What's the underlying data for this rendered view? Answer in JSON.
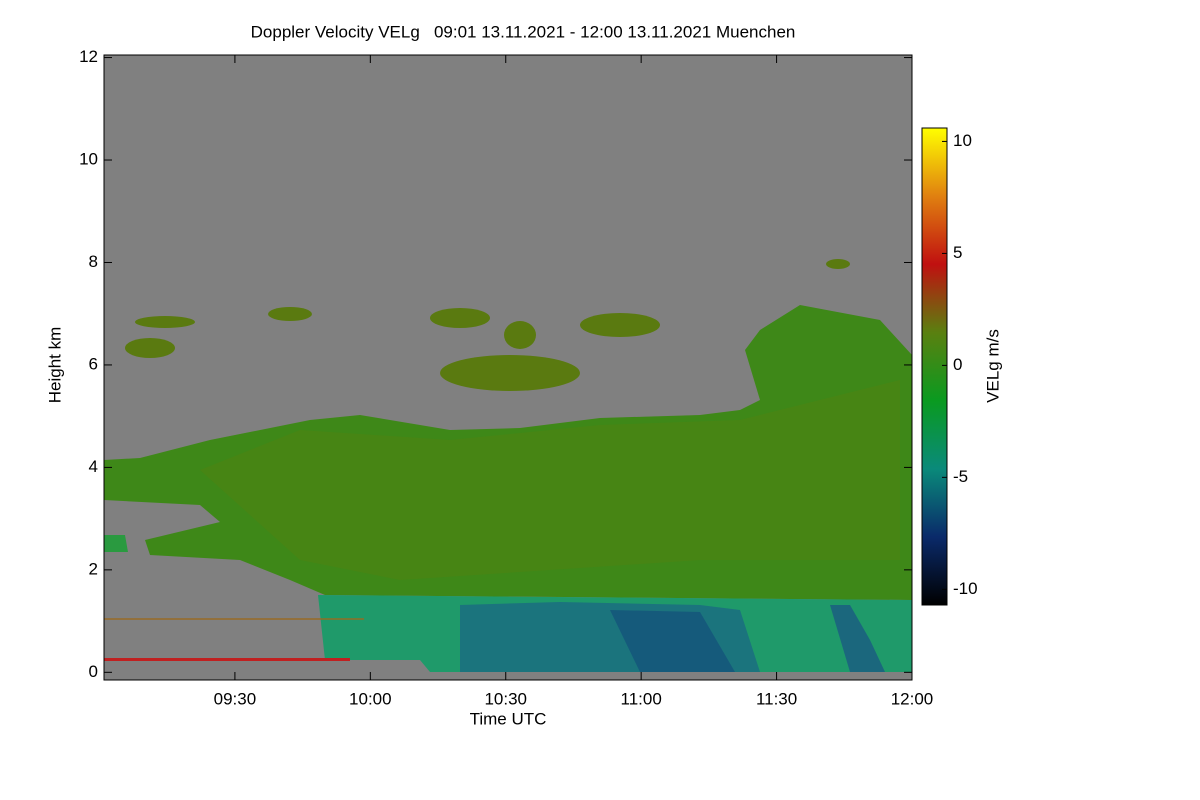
{
  "chart_data": {
    "type": "heatmap",
    "title": "Doppler Velocity VELg   09:01 13.11.2021 - 12:00 13.11.2021 Muenchen",
    "x_label": "Time UTC",
    "y_label": "Height km",
    "xlim": [
      541,
      720
    ],
    "xticks": [
      {
        "value": 570,
        "label": "09:30"
      },
      {
        "value": 600,
        "label": "10:00"
      },
      {
        "value": 630,
        "label": "10:30"
      },
      {
        "value": 660,
        "label": "11:00"
      },
      {
        "value": 690,
        "label": "11:30"
      },
      {
        "value": 720,
        "label": "12:00"
      }
    ],
    "ylim": [
      -0.15,
      12.05
    ],
    "yticks": [
      0,
      2,
      4,
      6,
      8,
      10,
      12
    ],
    "colorbar": {
      "label": "VELg m/s",
      "lim": [
        -10.7,
        10.6
      ],
      "ticks": [
        -10,
        -5,
        0,
        5,
        10
      ],
      "colormap": [
        "#000000",
        "#0a2a6a",
        "#0a8a7a",
        "#0a9a20",
        "#5a8010",
        "#c01010",
        "#e08010",
        "#ffff00"
      ]
    }
  }
}
